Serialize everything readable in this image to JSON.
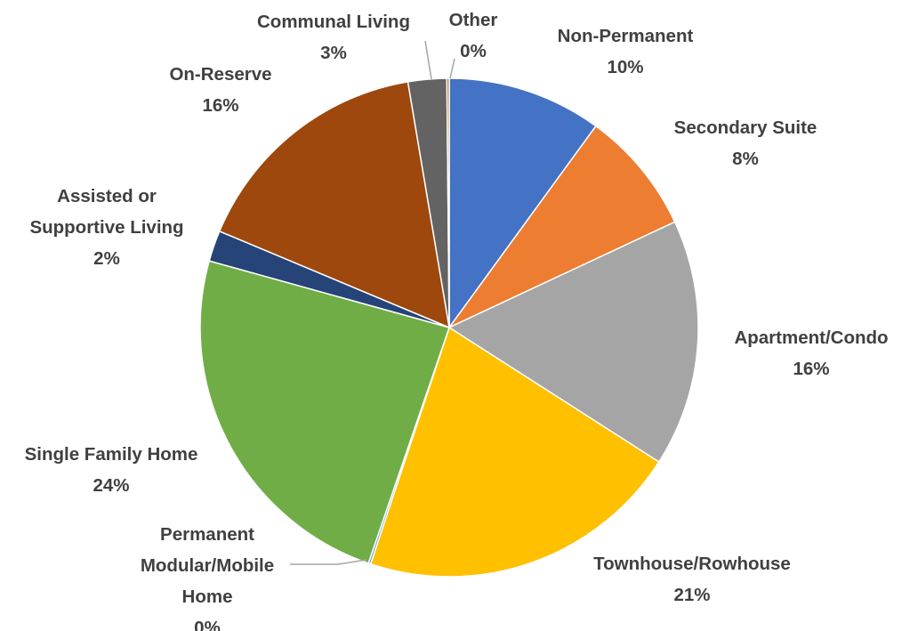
{
  "chart_data": {
    "type": "pie",
    "title": "",
    "start_angle_deg": 0,
    "direction": "clockwise",
    "slices": [
      {
        "label": "Non-Permanent",
        "value": 10,
        "value_label": "10%",
        "color": "#4472c4"
      },
      {
        "label": "Secondary Suite",
        "value": 8,
        "value_label": "8%",
        "color": "#ed7d31"
      },
      {
        "label": "Apartment/Condo",
        "value": 16,
        "value_label": "16%",
        "color": "#a5a5a5"
      },
      {
        "label": "Townhouse/Rowhouse",
        "value": 21,
        "value_label": "21%",
        "color": "#ffc000"
      },
      {
        "label": "Permanent Modular/Mobile Home",
        "label_lines": [
          "Permanent",
          "Modular/Mobile",
          "Home"
        ],
        "value": 0.15,
        "value_label": "0%",
        "color": "#5b9bd5"
      },
      {
        "label": "Single Family Home",
        "value": 24,
        "value_label": "24%",
        "color": "#70ad47"
      },
      {
        "label": "Assisted or Supportive Living",
        "label_lines": [
          "Assisted or",
          "Supportive Living"
        ],
        "value": 2,
        "value_label": "2%",
        "color": "#264478"
      },
      {
        "label": "On-Reserve",
        "value": 16,
        "value_label": "16%",
        "color": "#9e480e"
      },
      {
        "label": "Communal Living",
        "value": 2.5,
        "value_label": "3%",
        "color": "#636363"
      },
      {
        "label": "Other",
        "value": 0.15,
        "value_label": "0%",
        "color": "#997300"
      }
    ],
    "legend": "none",
    "data_labels": "category name and percentage, outside"
  }
}
